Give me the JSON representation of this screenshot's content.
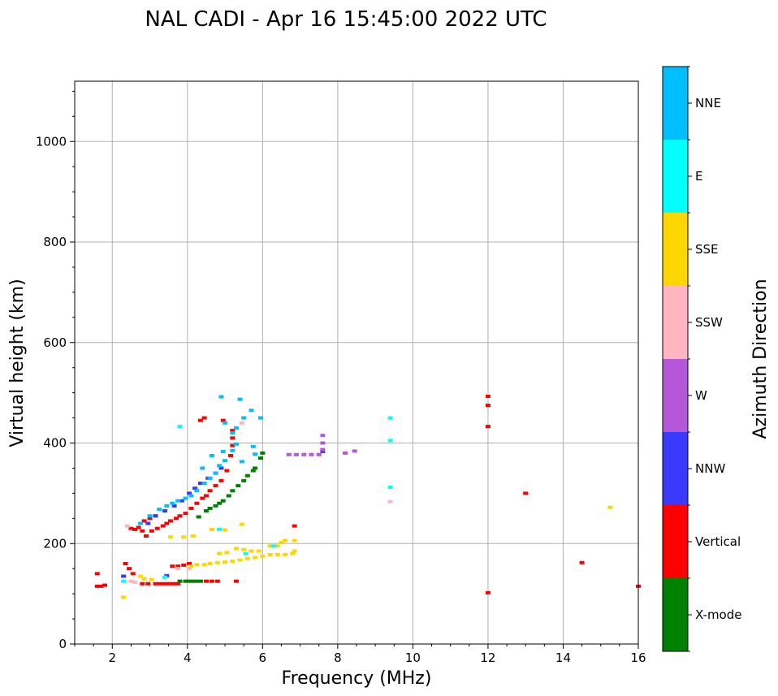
{
  "chart_data": {
    "type": "scatter",
    "title": "NAL CADI - Apr 16 15:45:00 2022 UTC",
    "xlabel": "Frequency (MHz)",
    "ylabel": "Virtual height (km)",
    "xlim": [
      1,
      16
    ],
    "ylim": [
      0,
      1120
    ],
    "xticks": [
      2,
      4,
      6,
      8,
      10,
      12,
      14,
      16
    ],
    "yticks": [
      0,
      200,
      400,
      600,
      800,
      1000
    ],
    "grid": true,
    "colorbar": {
      "title": "Azimuth Direction",
      "entries": [
        {
          "name": "X-mode",
          "color": "#008000"
        },
        {
          "name": "Vertical",
          "color": "#ff0000"
        },
        {
          "name": "NNW",
          "color": "#3a3aff"
        },
        {
          "name": "W",
          "color": "#b557d9"
        },
        {
          "name": "SSW",
          "color": "#ffb6c1"
        },
        {
          "name": "SSE",
          "color": "#ffd700"
        },
        {
          "name": "E",
          "color": "#00ffff"
        },
        {
          "name": "NNE",
          "color": "#00bfff"
        }
      ]
    },
    "series": [
      {
        "name": "X-mode",
        "points": [
          [
            3.8,
            125
          ],
          [
            3.95,
            125
          ],
          [
            4.05,
            125
          ],
          [
            4.15,
            125
          ],
          [
            4.25,
            125
          ],
          [
            4.35,
            125
          ],
          [
            4.3,
            253
          ],
          [
            4.5,
            265
          ],
          [
            4.6,
            270
          ],
          [
            4.75,
            275
          ],
          [
            4.85,
            280
          ],
          [
            4.95,
            285
          ],
          [
            5.1,
            295
          ],
          [
            5.2,
            305
          ],
          [
            5.35,
            315
          ],
          [
            5.5,
            325
          ],
          [
            5.6,
            335
          ],
          [
            5.75,
            345
          ],
          [
            5.8,
            350
          ],
          [
            5.95,
            370
          ],
          [
            6.0,
            380
          ]
        ]
      },
      {
        "name": "Vertical",
        "points": [
          [
            1.6,
            115
          ],
          [
            1.7,
            115
          ],
          [
            1.8,
            117
          ],
          [
            1.6,
            140
          ],
          [
            2.35,
            160
          ],
          [
            2.45,
            150
          ],
          [
            2.55,
            140
          ],
          [
            2.8,
            120
          ],
          [
            2.95,
            120
          ],
          [
            3.15,
            120
          ],
          [
            3.25,
            120
          ],
          [
            3.35,
            120
          ],
          [
            3.45,
            120
          ],
          [
            3.55,
            120
          ],
          [
            3.65,
            120
          ],
          [
            3.75,
            120
          ],
          [
            4.5,
            125
          ],
          [
            4.65,
            125
          ],
          [
            4.8,
            125
          ],
          [
            5.3,
            125
          ],
          [
            3.6,
            155
          ],
          [
            3.75,
            155
          ],
          [
            3.9,
            157
          ],
          [
            4.05,
            160
          ],
          [
            2.5,
            230
          ],
          [
            2.6,
            228
          ],
          [
            2.7,
            232
          ],
          [
            2.8,
            225
          ],
          [
            2.9,
            215
          ],
          [
            3.05,
            225
          ],
          [
            3.2,
            230
          ],
          [
            3.35,
            235
          ],
          [
            3.45,
            240
          ],
          [
            3.55,
            245
          ],
          [
            3.7,
            250
          ],
          [
            3.8,
            255
          ],
          [
            3.95,
            260
          ],
          [
            4.1,
            270
          ],
          [
            4.25,
            280
          ],
          [
            4.4,
            290
          ],
          [
            4.5,
            295
          ],
          [
            4.6,
            305
          ],
          [
            4.75,
            315
          ],
          [
            4.9,
            325
          ],
          [
            5.05,
            345
          ],
          [
            5.15,
            375
          ],
          [
            5.2,
            395
          ],
          [
            5.2,
            410
          ],
          [
            5.2,
            425
          ],
          [
            4.95,
            445
          ],
          [
            4.35,
            445
          ],
          [
            4.45,
            450
          ],
          [
            2.85,
            245
          ],
          [
            3.0,
            250
          ],
          [
            3.15,
            255
          ],
          [
            6.85,
            235
          ],
          [
            12.0,
            493
          ],
          [
            12.0,
            475
          ],
          [
            12.0,
            433
          ],
          [
            12.0,
            102
          ],
          [
            13.0,
            300
          ],
          [
            14.5,
            162
          ],
          [
            16.0,
            115
          ]
        ]
      },
      {
        "name": "NNW",
        "points": [
          [
            2.95,
            240
          ],
          [
            3.15,
            255
          ],
          [
            3.4,
            265
          ],
          [
            3.65,
            275
          ],
          [
            3.85,
            285
          ],
          [
            4.05,
            300
          ],
          [
            4.2,
            310
          ],
          [
            4.35,
            320
          ],
          [
            4.55,
            330
          ],
          [
            4.75,
            340
          ],
          [
            4.9,
            350
          ],
          [
            7.6,
            383
          ],
          [
            2.3,
            135
          ],
          [
            3.45,
            136
          ]
        ]
      },
      {
        "name": "W",
        "points": [
          [
            6.7,
            377
          ],
          [
            6.9,
            377
          ],
          [
            7.1,
            377
          ],
          [
            7.3,
            377
          ],
          [
            7.5,
            377
          ],
          [
            7.6,
            387
          ],
          [
            7.6,
            400
          ],
          [
            7.6,
            415
          ],
          [
            8.2,
            380
          ],
          [
            8.45,
            384
          ]
        ]
      },
      {
        "name": "SSW",
        "points": [
          [
            2.4,
            235
          ],
          [
            2.5,
            125
          ],
          [
            2.6,
            123
          ],
          [
            3.75,
            150
          ],
          [
            4.05,
            150
          ],
          [
            5.45,
            440
          ],
          [
            9.4,
            283
          ]
        ]
      },
      {
        "name": "SSE",
        "points": [
          [
            2.3,
            93
          ],
          [
            2.75,
            135
          ],
          [
            2.85,
            130
          ],
          [
            3.05,
            128
          ],
          [
            4.1,
            155
          ],
          [
            4.25,
            158
          ],
          [
            4.45,
            158
          ],
          [
            4.6,
            160
          ],
          [
            4.8,
            162
          ],
          [
            5.0,
            163
          ],
          [
            5.2,
            165
          ],
          [
            5.4,
            167
          ],
          [
            5.6,
            170
          ],
          [
            5.8,
            172
          ],
          [
            6.0,
            175
          ],
          [
            6.2,
            178
          ],
          [
            6.4,
            178
          ],
          [
            6.6,
            178
          ],
          [
            6.8,
            180
          ],
          [
            4.85,
            180
          ],
          [
            5.05,
            182
          ],
          [
            5.3,
            190
          ],
          [
            5.5,
            188
          ],
          [
            5.7,
            185
          ],
          [
            5.9,
            185
          ],
          [
            6.2,
            195
          ],
          [
            6.4,
            195
          ],
          [
            6.5,
            202
          ],
          [
            6.6,
            206
          ],
          [
            6.85,
            206
          ],
          [
            6.85,
            185
          ],
          [
            3.55,
            213
          ],
          [
            3.9,
            213
          ],
          [
            4.15,
            215
          ],
          [
            4.65,
            228
          ],
          [
            5.0,
            227
          ],
          [
            5.45,
            238
          ],
          [
            15.25,
            272
          ]
        ]
      },
      {
        "name": "E",
        "points": [
          [
            2.3,
            125
          ],
          [
            3.4,
            133
          ],
          [
            4.85,
            228
          ],
          [
            5.55,
            180
          ],
          [
            6.3,
            195
          ],
          [
            9.4,
            450
          ],
          [
            9.4,
            405
          ],
          [
            9.4,
            312
          ],
          [
            3.8,
            433
          ]
        ]
      },
      {
        "name": "NNE",
        "points": [
          [
            2.75,
            240
          ],
          [
            3.0,
            255
          ],
          [
            3.25,
            268
          ],
          [
            3.45,
            275
          ],
          [
            3.6,
            280
          ],
          [
            3.75,
            285
          ],
          [
            3.95,
            290
          ],
          [
            4.1,
            295
          ],
          [
            4.25,
            305
          ],
          [
            4.45,
            320
          ],
          [
            4.6,
            330
          ],
          [
            4.75,
            340
          ],
          [
            4.85,
            355
          ],
          [
            5.0,
            365
          ],
          [
            5.2,
            385
          ],
          [
            5.3,
            398
          ],
          [
            4.4,
            350
          ],
          [
            4.65,
            375
          ],
          [
            4.95,
            383
          ],
          [
            5.2,
            420
          ],
          [
            5.3,
            430
          ],
          [
            5.5,
            450
          ],
          [
            5.7,
            465
          ],
          [
            5.4,
            487
          ],
          [
            4.9,
            492
          ],
          [
            5.0,
            440
          ],
          [
            5.45,
            363
          ],
          [
            5.75,
            393
          ],
          [
            5.8,
            378
          ],
          [
            5.95,
            450
          ]
        ]
      }
    ]
  }
}
